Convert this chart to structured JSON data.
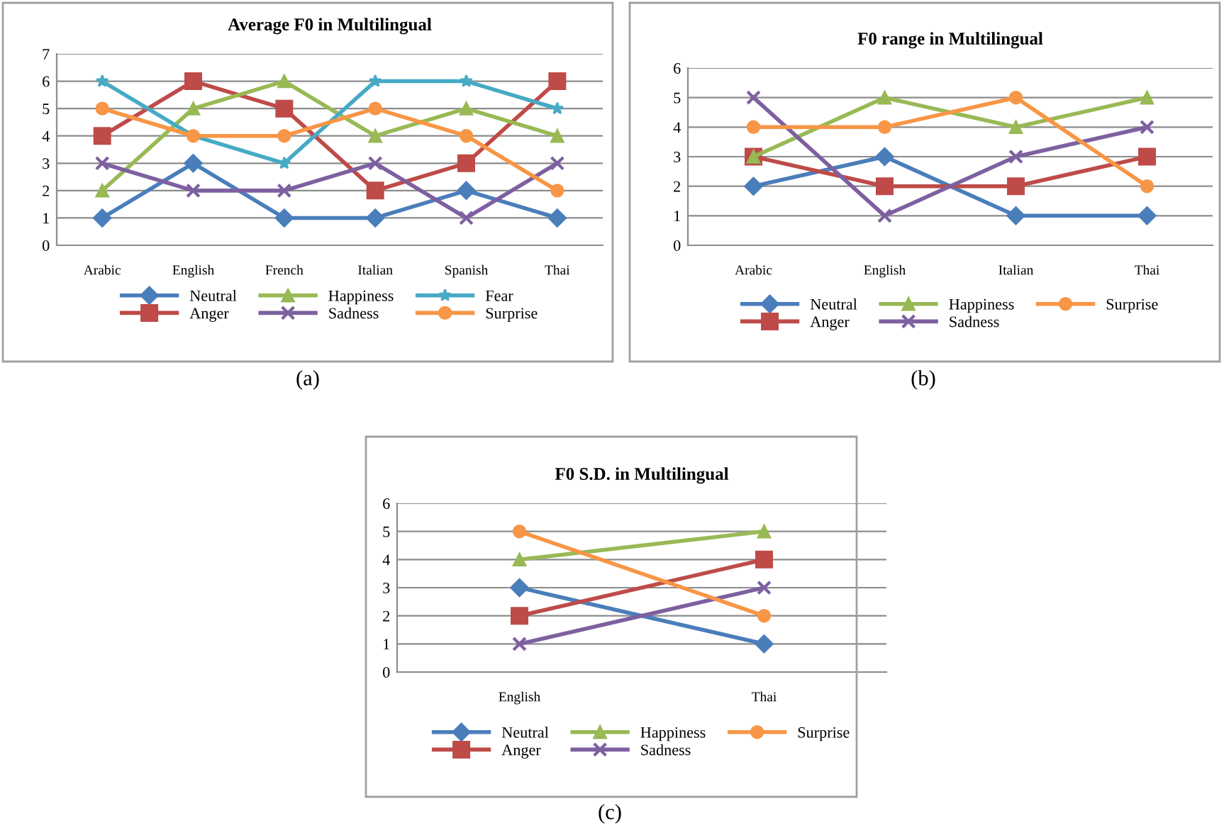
{
  "chart_data": [
    {
      "type": "line",
      "title": "Average F0 in Multilingual",
      "categories": [
        "Arabic",
        "English",
        "French",
        "Italian",
        "Spanish",
        "Thai"
      ],
      "ylim": [
        0,
        7
      ],
      "yticks": [
        0,
        1,
        2,
        3,
        4,
        5,
        6,
        7
      ],
      "grid": "y",
      "legend": "bottom",
      "annotations": [
        "(a)"
      ],
      "series": [
        {
          "name": "Neutral",
          "color": "#4a7ebb",
          "marker": "diamond",
          "values": [
            1,
            3,
            1,
            1,
            2,
            1
          ]
        },
        {
          "name": "Anger",
          "color": "#be4b48",
          "marker": "square",
          "values": [
            4,
            6,
            5,
            2,
            3,
            6
          ]
        },
        {
          "name": "Happiness",
          "color": "#98b954",
          "marker": "triangle",
          "values": [
            2,
            5,
            6,
            4,
            5,
            4
          ]
        },
        {
          "name": "Sadness",
          "color": "#7d60a0",
          "marker": "cross",
          "values": [
            3,
            2,
            2,
            3,
            1,
            3
          ]
        },
        {
          "name": "Fear",
          "color": "#46aac5",
          "marker": "star",
          "values": [
            6,
            4,
            3,
            6,
            6,
            5
          ]
        },
        {
          "name": "Surprise",
          "color": "#f79646",
          "marker": "circle",
          "values": [
            5,
            4,
            4,
            5,
            4,
            2
          ]
        }
      ]
    },
    {
      "type": "line",
      "title": "F0 range in Multilingual",
      "categories": [
        "Arabic",
        "English",
        "Italian",
        "Thai"
      ],
      "ylim": [
        0,
        6
      ],
      "yticks": [
        0,
        1,
        2,
        3,
        4,
        5,
        6
      ],
      "grid": "y",
      "legend": "bottom",
      "annotations": [
        "(b)"
      ],
      "series": [
        {
          "name": "Neutral",
          "color": "#4a7ebb",
          "marker": "diamond",
          "values": [
            2,
            3,
            1,
            1
          ]
        },
        {
          "name": "Anger",
          "color": "#be4b48",
          "marker": "square",
          "values": [
            3,
            2,
            2,
            3
          ]
        },
        {
          "name": "Happiness",
          "color": "#98b954",
          "marker": "triangle",
          "values": [
            3,
            5,
            4,
            5
          ]
        },
        {
          "name": "Sadness",
          "color": "#7d60a0",
          "marker": "cross",
          "values": [
            5,
            1,
            3,
            4
          ]
        },
        {
          "name": "Surprise",
          "color": "#f79646",
          "marker": "circle",
          "values": [
            4,
            4,
            5,
            2
          ]
        }
      ]
    },
    {
      "type": "line",
      "title": "F0 S.D. in Multilingual",
      "categories": [
        "English",
        "Thai"
      ],
      "ylim": [
        0,
        6
      ],
      "yticks": [
        0,
        1,
        2,
        3,
        4,
        5,
        6
      ],
      "grid": "y",
      "legend": "bottom",
      "annotations": [
        "(c)"
      ],
      "series": [
        {
          "name": "Neutral",
          "color": "#4a7ebb",
          "marker": "diamond",
          "values": [
            3,
            1
          ]
        },
        {
          "name": "Anger",
          "color": "#be4b48",
          "marker": "square",
          "values": [
            2,
            4
          ]
        },
        {
          "name": "Happiness",
          "color": "#98b954",
          "marker": "triangle",
          "values": [
            4,
            5
          ]
        },
        {
          "name": "Sadness",
          "color": "#7d60a0",
          "marker": "cross",
          "values": [
            1,
            3
          ]
        },
        {
          "name": "Surprise",
          "color": "#f79646",
          "marker": "circle",
          "values": [
            5,
            2
          ]
        }
      ]
    }
  ]
}
